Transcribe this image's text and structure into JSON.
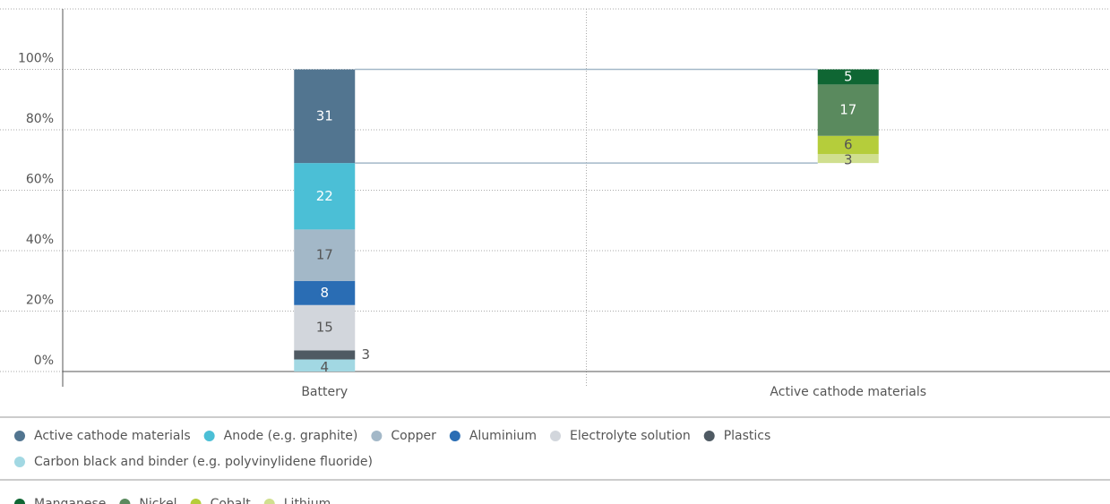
{
  "chart_data": {
    "type": "stacked_bar",
    "categories": [
      "Battery",
      "Active cathode materials"
    ],
    "series": [
      {
        "name": "Carbon black and binder (e.g. polyvinylidene fluoride)",
        "color": "#a2d8e3",
        "values": [
          4,
          null
        ]
      },
      {
        "name": "Plastics",
        "color": "#4f5a63",
        "values": [
          3,
          null
        ]
      },
      {
        "name": "Electrolyte solution",
        "color": "#d2d6dc",
        "values": [
          15,
          null
        ]
      },
      {
        "name": "Aluminium",
        "color": "#2a6db4",
        "values": [
          8,
          null
        ]
      },
      {
        "name": "Copper",
        "color": "#a3b8c8",
        "values": [
          17,
          null
        ]
      },
      {
        "name": "Anode (e.g. graphite)",
        "color": "#4bbfd6",
        "values": [
          22,
          null
        ]
      },
      {
        "name": "Active cathode materials",
        "color": "#527590",
        "values": [
          31,
          null
        ]
      },
      {
        "name": "Lithium",
        "color": "#d0df8f",
        "values": [
          null,
          3
        ]
      },
      {
        "name": "Cobalt",
        "color": "#b5cd3b",
        "values": [
          null,
          6
        ]
      },
      {
        "name": "Nickel",
        "color": "#5a8a5e",
        "values": [
          null,
          17
        ]
      },
      {
        "name": "Manganese",
        "color": "#0f6633",
        "values": [
          null,
          5
        ]
      }
    ],
    "ylim": [
      0,
      120
    ],
    "yticks": [
      {
        "value": 0,
        "label": "0%"
      },
      {
        "value": 20,
        "label": "20%"
      },
      {
        "value": 40,
        "label": "40%"
      },
      {
        "value": 60,
        "label": "60%"
      },
      {
        "value": 80,
        "label": "80%"
      },
      {
        "value": 100,
        "label": "100%"
      }
    ],
    "grid": true
  }
}
